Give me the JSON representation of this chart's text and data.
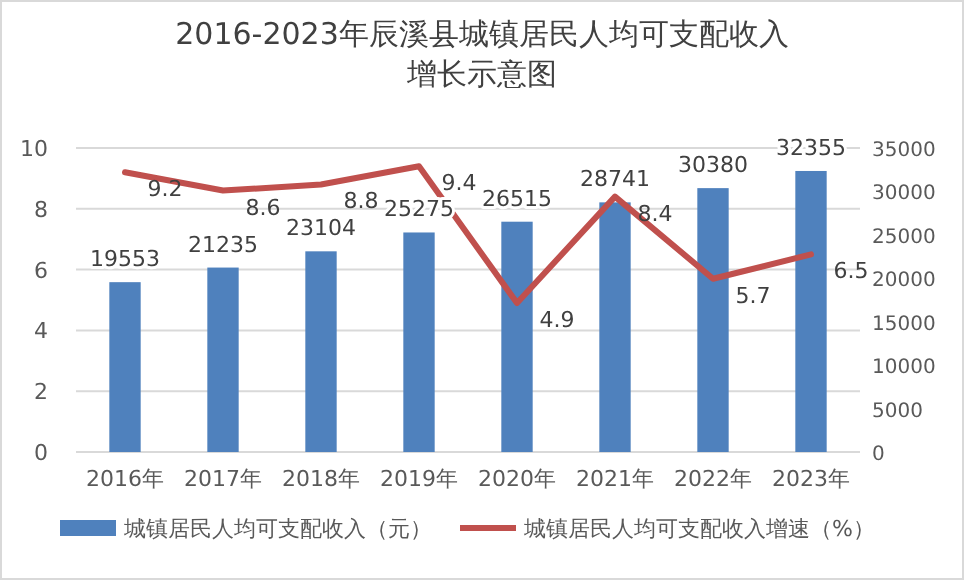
{
  "chart_data": {
    "type": "bar",
    "title": "2016-2023年辰溪县城镇居民人均可支配收入增长示意图",
    "categories": [
      "2016年",
      "2017年",
      "2018年",
      "2019年",
      "2020年",
      "2021年",
      "2022年",
      "2023年"
    ],
    "series": [
      {
        "name": "城镇居民人均可支配收入（元）",
        "axis": "y2",
        "color": "#4f81bd",
        "values": [
          19553,
          21235,
          23104,
          25275,
          26515,
          28741,
          30380,
          32355
        ]
      },
      {
        "name": "城镇居民人均可支配收入增速（%）",
        "type": "line",
        "color": "#c0504d",
        "values": [
          9.2,
          8.6,
          8.8,
          9.4,
          4.9,
          8.4,
          5.7,
          6.5
        ]
      }
    ],
    "ylim": [
      0,
      10
    ],
    "yticks": [
      0,
      2,
      4,
      6,
      8,
      10
    ],
    "y2lim": [
      0,
      35000
    ],
    "y2ticks": [
      0,
      5000,
      10000,
      15000,
      20000,
      25000,
      30000,
      35000
    ],
    "grid": "y",
    "legend": "bottom",
    "data_labels": true,
    "marker": "none",
    "line_style": "solid"
  }
}
